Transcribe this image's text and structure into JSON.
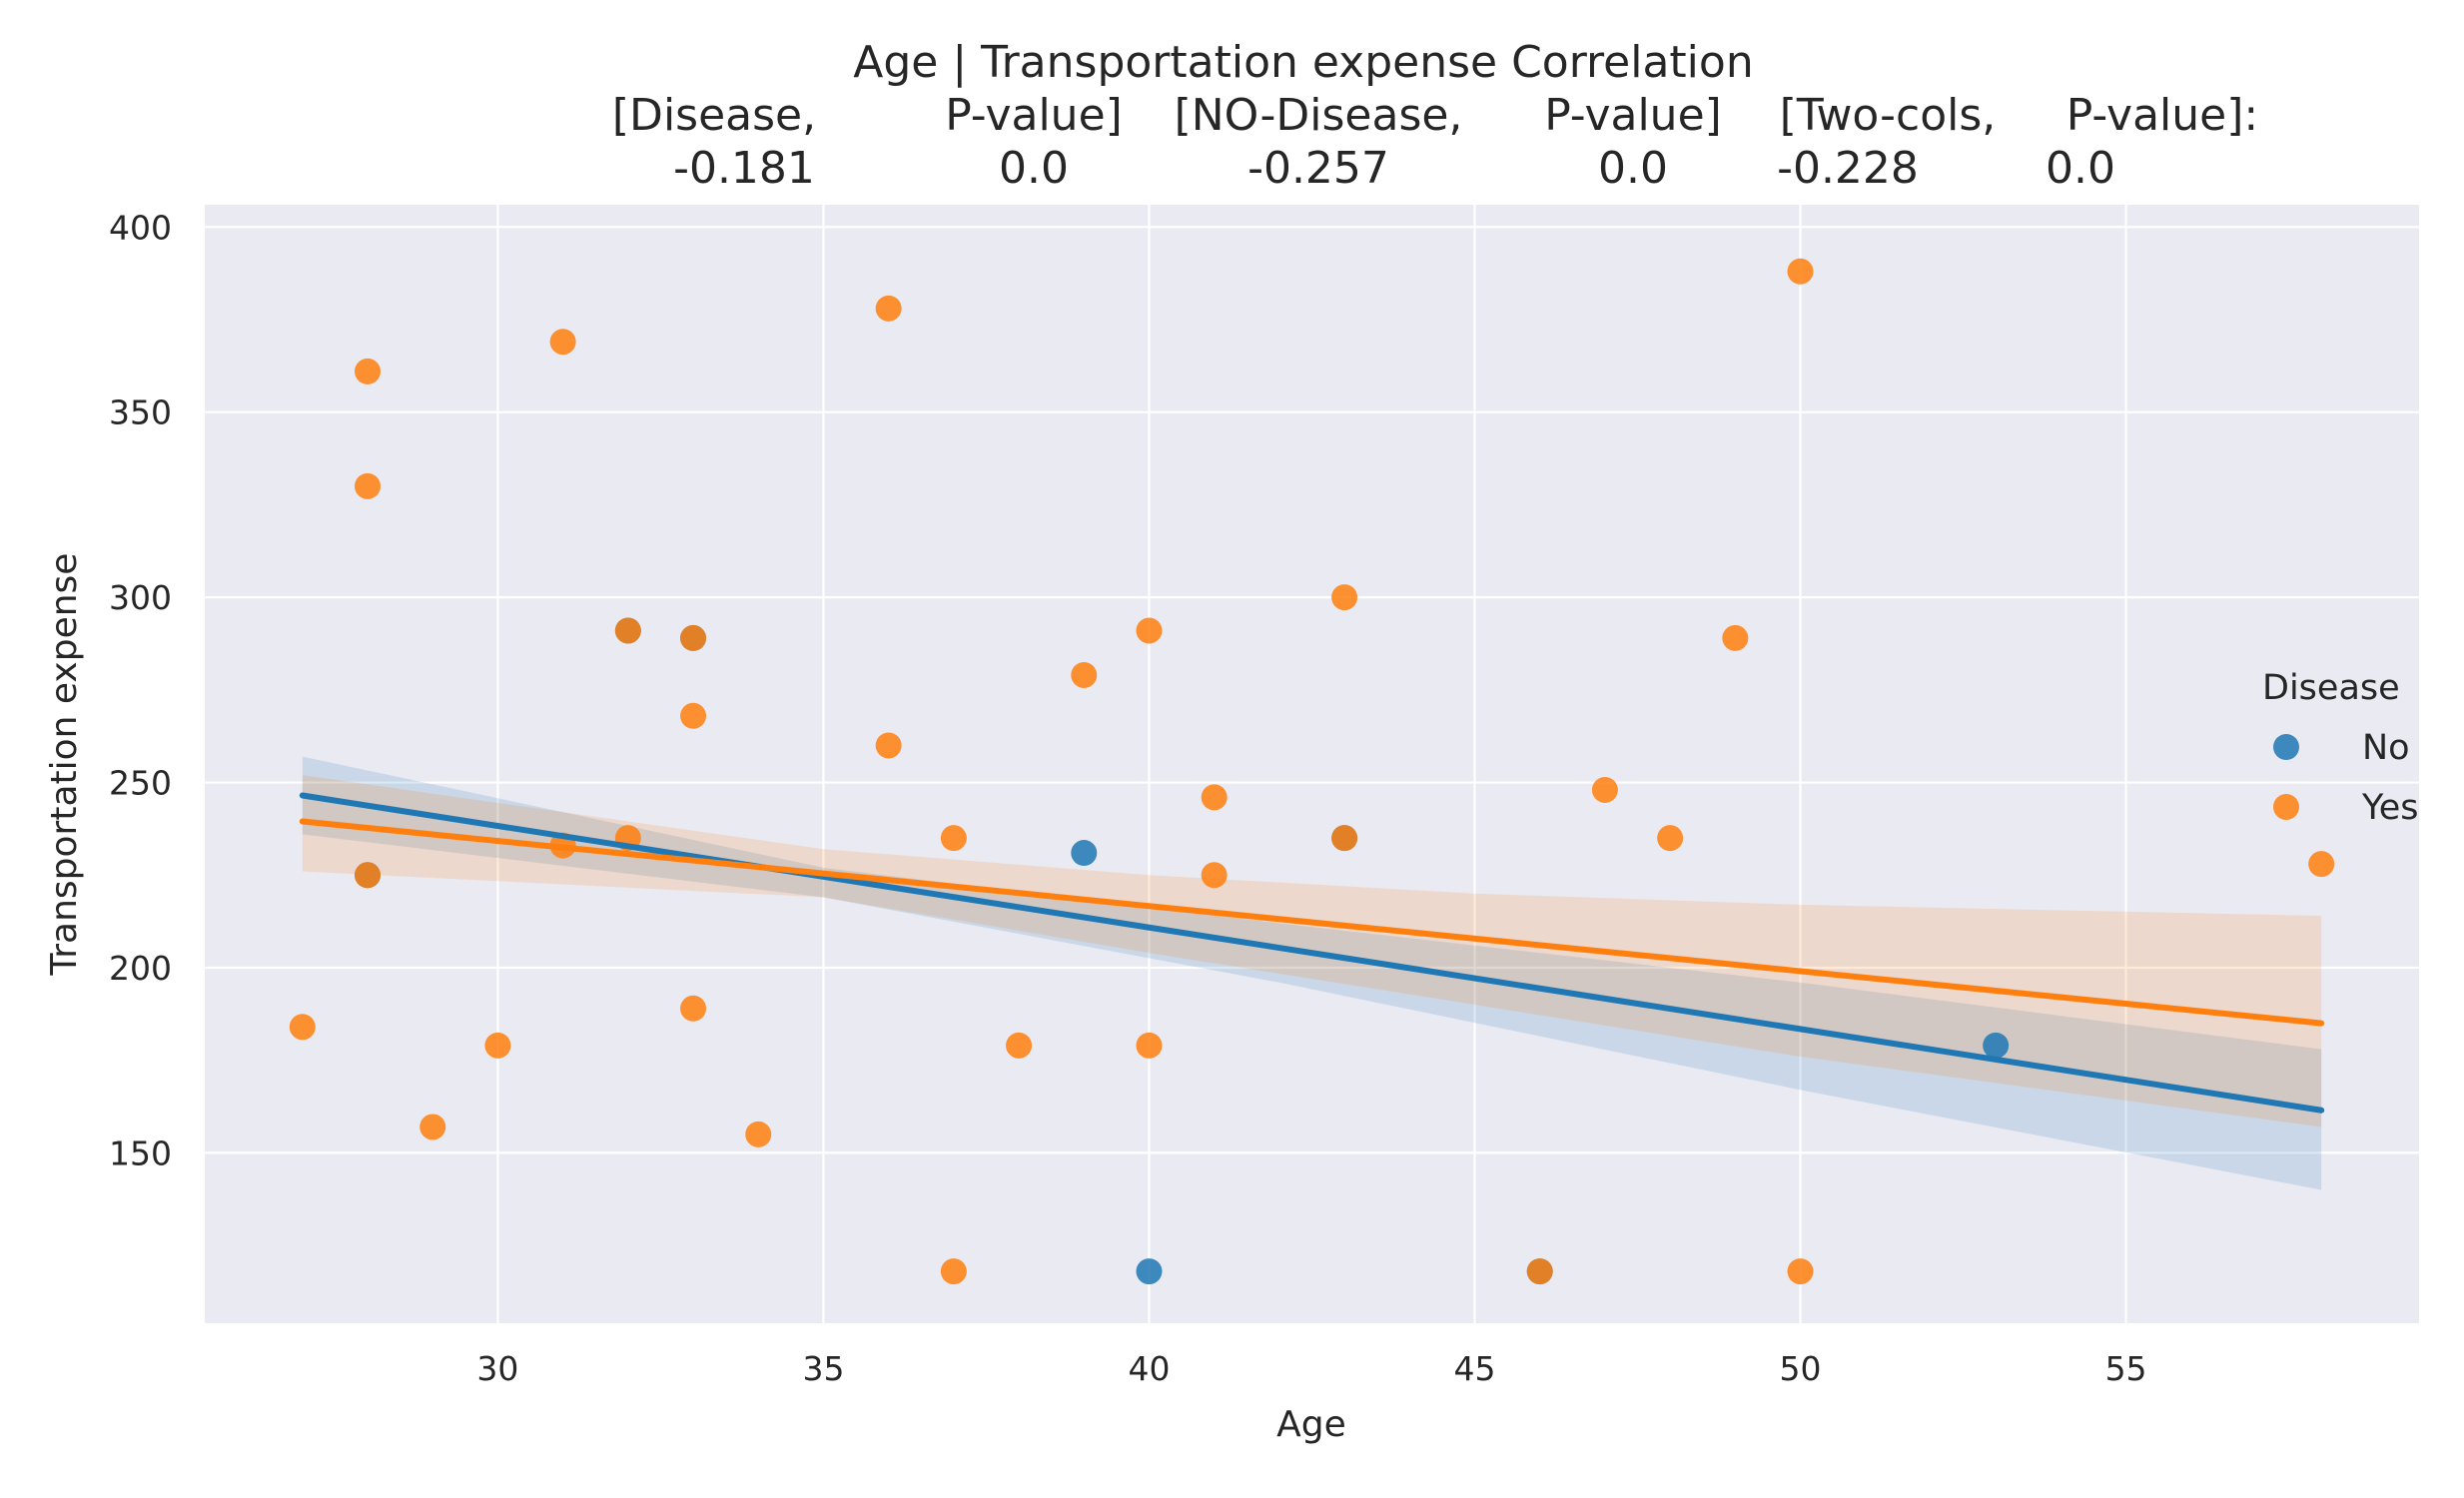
{
  "chart_data": {
    "type": "scatter",
    "title_lines": [
      [
        "Age | Transportation expense    Correlation"
      ],
      [
        "[Disease,",
        "P-value]",
        "[NO-Disease,",
        "P-value]",
        "[Two-cols,",
        "P-value]:"
      ],
      [
        "-0.181",
        "0.0",
        "-0.257",
        "0.0",
        "-0.228",
        "0.0"
      ]
    ],
    "xlabel": "Age",
    "ylabel": "Transportation expense",
    "xlim": [
      25.5,
      59.5
    ],
    "ylim": [
      104,
      406
    ],
    "xticks": [
      30,
      35,
      40,
      45,
      50,
      55
    ],
    "yticks": [
      150,
      200,
      250,
      300,
      350,
      400
    ],
    "grid": true,
    "legend": {
      "title": "Disease",
      "placement": "center-right"
    },
    "series": [
      {
        "name": "No",
        "color": "#1f77b4",
        "points": [
          [
            39,
            231
          ],
          [
            40,
            118
          ],
          [
            53,
            179
          ],
          [
            32,
            291
          ],
          [
            46,
            118
          ],
          [
            43,
            235
          ],
          [
            28,
            225
          ],
          [
            33,
            289
          ]
        ],
        "regression": {
          "x": [
            27,
            58
          ],
          "y": [
            246.5,
            161.5
          ]
        },
        "ci_upper": [
          [
            27,
            257
          ],
          [
            35,
            227
          ],
          [
            42,
            212
          ],
          [
            50,
            196
          ],
          [
            58,
            178
          ]
        ],
        "ci_lower": [
          [
            27,
            236
          ],
          [
            35,
            219
          ],
          [
            42,
            196
          ],
          [
            50,
            167
          ],
          [
            58,
            140
          ]
        ]
      },
      {
        "name": "Yes",
        "color": "#ff7f0e",
        "points": [
          [
            27,
            184
          ],
          [
            28,
            361
          ],
          [
            28,
            330
          ],
          [
            28,
            225
          ],
          [
            29,
            157
          ],
          [
            30,
            179
          ],
          [
            31,
            369
          ],
          [
            31,
            233
          ],
          [
            32,
            291
          ],
          [
            32,
            235
          ],
          [
            33,
            289
          ],
          [
            33,
            268
          ],
          [
            33,
            189
          ],
          [
            34,
            155
          ],
          [
            36,
            378
          ],
          [
            36,
            260
          ],
          [
            37,
            235
          ],
          [
            37,
            118
          ],
          [
            38,
            179
          ],
          [
            39,
            279
          ],
          [
            40,
            291
          ],
          [
            40,
            179
          ],
          [
            41,
            246
          ],
          [
            41,
            225
          ],
          [
            43,
            300
          ],
          [
            43,
            235
          ],
          [
            46,
            118
          ],
          [
            47,
            248
          ],
          [
            48,
            235
          ],
          [
            49,
            289
          ],
          [
            50,
            388
          ],
          [
            50,
            118
          ],
          [
            58,
            228
          ]
        ],
        "regression": {
          "x": [
            27,
            58
          ],
          "y": [
            239.5,
            185
          ]
        },
        "ci_upper": [
          [
            27,
            252
          ],
          [
            35,
            232
          ],
          [
            40,
            225
          ],
          [
            45,
            220
          ],
          [
            50,
            217
          ],
          [
            58,
            214
          ]
        ],
        "ci_lower": [
          [
            27,
            226
          ],
          [
            35,
            219
          ],
          [
            40,
            204
          ],
          [
            45,
            190
          ],
          [
            50,
            176
          ],
          [
            58,
            157
          ]
        ]
      }
    ]
  }
}
